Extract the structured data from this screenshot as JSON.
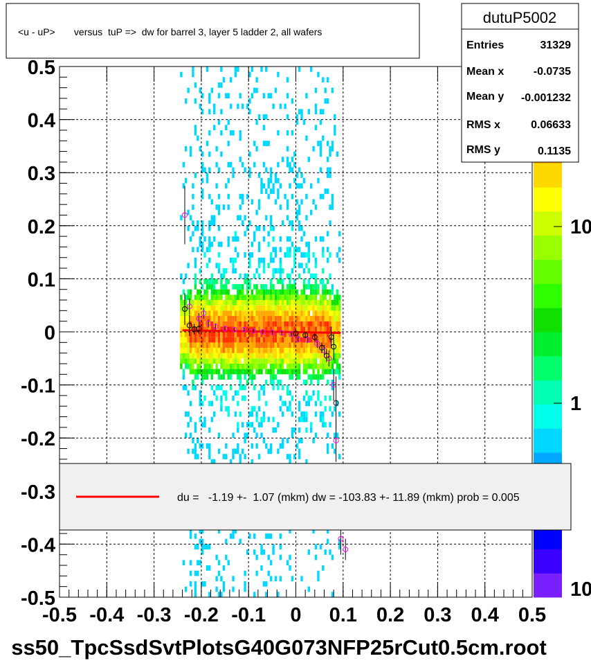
{
  "title": "<u - uP>       versus  tuP =>  dw for barrel 3, layer 5 ladder 2, all wafers",
  "footer": "ss50_TpcSsdSvtPlotsG40G073NFP25rCut0.5cm.root",
  "stats": {
    "name": "dutuP5002",
    "rows": [
      {
        "label": "Entries",
        "value": "31329"
      },
      {
        "label": "Mean x",
        "value": "-0.0735"
      },
      {
        "label": "Mean y",
        "value": "-0.001232"
      },
      {
        "label": "RMS x",
        "value": "0.06633"
      },
      {
        "label": "RMS y",
        "value": "0.1135"
      }
    ]
  },
  "legend": {
    "text": "du =   -1.19 +-  1.07 (mkm) dw = -103.83 +- 11.89 (mkm) prob = 0.005",
    "line_color": "#ff0000"
  },
  "palette": {
    "labels": [
      "10",
      "1",
      "10"
    ]
  },
  "colors": {
    "fit_line": "#ff0000",
    "profile_black": "#000000",
    "profile_magenta": "#ff00ff"
  },
  "chart_data": {
    "type": "heatmap",
    "title": "<u - uP>       versus  tuP =>  dw for barrel 3, layer 5 ladder 2, all wafers",
    "xlabel": "",
    "ylabel": "",
    "xlim": [
      -0.5,
      0.5
    ],
    "ylim": [
      -0.5,
      0.5
    ],
    "x_ticks": [
      "-0.5",
      "-0.4",
      "-0.3",
      "-0.2",
      "-0.1",
      "0",
      "0.1",
      "0.2",
      "0.3",
      "0.4",
      "0.5"
    ],
    "y_ticks": [
      "-0.5",
      "-0.4",
      "-0.3",
      "-0.2",
      "-0.1",
      "0",
      "0.1",
      "0.2",
      "0.3",
      "0.4",
      "0.5"
    ],
    "grid": true,
    "log_z": true,
    "populated_x_range": [
      -0.24,
      0.1
    ],
    "core_y_range": [
      -0.05,
      0.05
    ],
    "fit_line": {
      "x": [
        -0.24,
        0.095
      ],
      "y": [
        0.003,
        -0.002
      ]
    },
    "profile_black": [
      {
        "x": -0.235,
        "y": 0.043,
        "err": 0.03
      },
      {
        "x": -0.225,
        "y": 0.012,
        "err": 0.02
      },
      {
        "x": -0.215,
        "y": 0.005,
        "err": 0.01
      },
      {
        "x": -0.205,
        "y": 0.006,
        "err": 0.01
      },
      {
        "x": 0.0,
        "y": -0.003,
        "err": 0.005
      },
      {
        "x": 0.02,
        "y": -0.006,
        "err": 0.006
      },
      {
        "x": 0.04,
        "y": -0.01,
        "err": 0.008
      },
      {
        "x": 0.055,
        "y": -0.03,
        "err": 0.01
      },
      {
        "x": 0.065,
        "y": -0.045,
        "err": 0.012
      },
      {
        "x": 0.075,
        "y": -0.01,
        "err": 0.02
      },
      {
        "x": 0.08,
        "y": -0.028,
        "err": 0.025
      },
      {
        "x": 0.085,
        "y": -0.134,
        "err": 0.05
      }
    ],
    "profile_magenta": [
      {
        "x": -0.235,
        "y": 0.22,
        "err": 0.055
      },
      {
        "x": -0.225,
        "y": 0.048,
        "err": 0.015
      },
      {
        "x": -0.205,
        "y": 0.025,
        "err": 0.01
      },
      {
        "x": -0.195,
        "y": 0.035,
        "err": 0.01
      },
      {
        "x": -0.185,
        "y": 0.016,
        "err": 0.008
      },
      {
        "x": -0.17,
        "y": 0.01,
        "err": 0.006
      },
      {
        "x": -0.15,
        "y": 0.006,
        "err": 0.005
      },
      {
        "x": -0.13,
        "y": 0.004,
        "err": 0.004
      },
      {
        "x": -0.11,
        "y": 0.004,
        "err": 0.004
      },
      {
        "x": -0.09,
        "y": 0.002,
        "err": 0.004
      },
      {
        "x": -0.07,
        "y": 0.0,
        "err": 0.004
      },
      {
        "x": -0.05,
        "y": -0.001,
        "err": 0.004
      },
      {
        "x": -0.03,
        "y": -0.002,
        "err": 0.004
      },
      {
        "x": -0.01,
        "y": -0.004,
        "err": 0.004
      },
      {
        "x": 0.005,
        "y": -0.014,
        "err": 0.006
      },
      {
        "x": 0.025,
        "y": -0.015,
        "err": 0.006
      },
      {
        "x": 0.045,
        "y": -0.022,
        "err": 0.008
      },
      {
        "x": 0.06,
        "y": -0.035,
        "err": 0.01
      },
      {
        "x": 0.07,
        "y": -0.05,
        "err": 0.015
      },
      {
        "x": 0.08,
        "y": -0.1,
        "err": 0.03
      },
      {
        "x": 0.085,
        "y": -0.205,
        "err": 0.04
      },
      {
        "x": 0.095,
        "y": -0.39,
        "err": 0.03
      },
      {
        "x": 0.105,
        "y": -0.41,
        "err": 0.02
      }
    ]
  }
}
